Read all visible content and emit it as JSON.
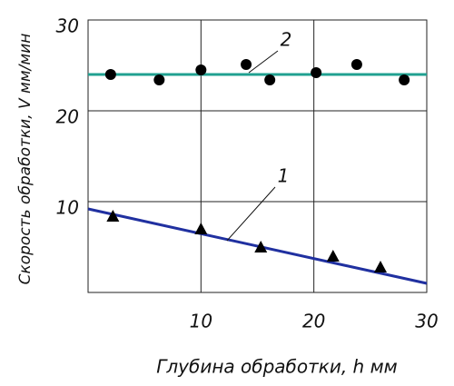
{
  "chart_data": {
    "type": "scatter",
    "x_label": "Глубина обработки, h мм",
    "y_label": "Скорость обработки, V мм/мин",
    "xlim": [
      0,
      30
    ],
    "xticks": [
      10,
      20,
      30
    ],
    "ylim": [
      0,
      30
    ],
    "yticks": [
      10,
      20,
      30
    ],
    "grid": true,
    "series": [
      {
        "label": "2",
        "marker": "circle",
        "color": "#000000",
        "x": [
          2,
          6.3,
          10,
          14,
          16.1,
          20.2,
          23.8,
          28
        ],
        "values": [
          24,
          23.4,
          24.5,
          25.1,
          23.4,
          24.2,
          25.1,
          23.4
        ],
        "fit": {
          "color": "#20a090",
          "x": [
            0,
            30
          ],
          "values": [
            24,
            24
          ]
        }
      },
      {
        "label": "1",
        "marker": "triangle",
        "color": "#000000",
        "x": [
          2.2,
          10,
          15.3,
          21.7,
          25.9
        ],
        "values": [
          8.4,
          7,
          5,
          4,
          2.8
        ],
        "fit": {
          "color": "#2030a0",
          "x": [
            0,
            30
          ],
          "values": [
            9.2,
            1
          ]
        }
      }
    ]
  }
}
